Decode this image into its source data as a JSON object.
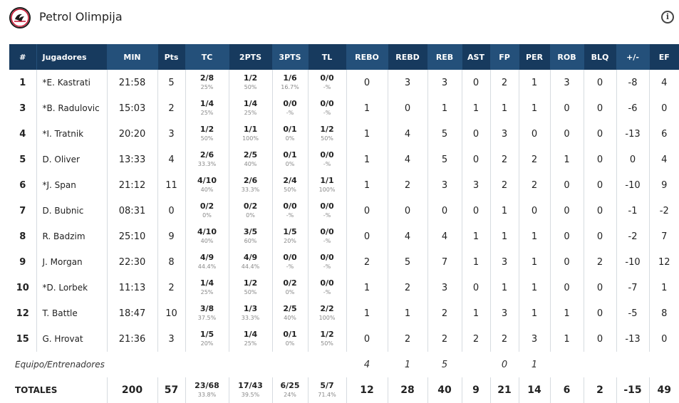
{
  "header": {
    "title": "Petrol Olimpija",
    "info_icon": "info-icon"
  },
  "columns": [
    "#",
    "Jugadores",
    "MIN",
    "Pts",
    "TC",
    "2PTS",
    "3PTS",
    "TL",
    "REBO",
    "REBD",
    "REB",
    "AST",
    "FP",
    "PER",
    "ROB",
    "BLQ",
    "+/-",
    "EF"
  ],
  "players": [
    {
      "num": "1",
      "name": "*E. Kastrati",
      "min": "21:58",
      "pts": "5",
      "tc": "2/8",
      "tc_pct": "25%",
      "p2": "1/2",
      "p2_pct": "50%",
      "p3": "1/6",
      "p3_pct": "16.7%",
      "tl": "0/0",
      "tl_pct": "-%",
      "rebo": "0",
      "rebd": "3",
      "reb": "3",
      "ast": "0",
      "fp": "2",
      "per": "1",
      "rob": "3",
      "blq": "0",
      "pm": "-8",
      "ef": "4"
    },
    {
      "num": "3",
      "name": "*B. Radulovic",
      "min": "15:03",
      "pts": "2",
      "tc": "1/4",
      "tc_pct": "25%",
      "p2": "1/4",
      "p2_pct": "25%",
      "p3": "0/0",
      "p3_pct": "-%",
      "tl": "0/0",
      "tl_pct": "-%",
      "rebo": "1",
      "rebd": "0",
      "reb": "1",
      "ast": "1",
      "fp": "1",
      "per": "1",
      "rob": "0",
      "blq": "0",
      "pm": "-6",
      "ef": "0"
    },
    {
      "num": "4",
      "name": "*I. Tratnik",
      "min": "20:20",
      "pts": "3",
      "tc": "1/2",
      "tc_pct": "50%",
      "p2": "1/1",
      "p2_pct": "100%",
      "p3": "0/1",
      "p3_pct": "0%",
      "tl": "1/2",
      "tl_pct": "50%",
      "rebo": "1",
      "rebd": "4",
      "reb": "5",
      "ast": "0",
      "fp": "3",
      "per": "0",
      "rob": "0",
      "blq": "0",
      "pm": "-13",
      "ef": "6"
    },
    {
      "num": "5",
      "name": "D. Oliver",
      "min": "13:33",
      "pts": "4",
      "tc": "2/6",
      "tc_pct": "33.3%",
      "p2": "2/5",
      "p2_pct": "40%",
      "p3": "0/1",
      "p3_pct": "0%",
      "tl": "0/0",
      "tl_pct": "-%",
      "rebo": "1",
      "rebd": "4",
      "reb": "5",
      "ast": "0",
      "fp": "2",
      "per": "2",
      "rob": "1",
      "blq": "0",
      "pm": "0",
      "ef": "4"
    },
    {
      "num": "6",
      "name": "*J. Span",
      "min": "21:12",
      "pts": "11",
      "tc": "4/10",
      "tc_pct": "40%",
      "p2": "2/6",
      "p2_pct": "33.3%",
      "p3": "2/4",
      "p3_pct": "50%",
      "tl": "1/1",
      "tl_pct": "100%",
      "rebo": "1",
      "rebd": "2",
      "reb": "3",
      "ast": "3",
      "fp": "2",
      "per": "2",
      "rob": "0",
      "blq": "0",
      "pm": "-10",
      "ef": "9"
    },
    {
      "num": "7",
      "name": "D. Bubnic",
      "min": "08:31",
      "pts": "0",
      "tc": "0/2",
      "tc_pct": "0%",
      "p2": "0/2",
      "p2_pct": "0%",
      "p3": "0/0",
      "p3_pct": "-%",
      "tl": "0/0",
      "tl_pct": "-%",
      "rebo": "0",
      "rebd": "0",
      "reb": "0",
      "ast": "0",
      "fp": "1",
      "per": "0",
      "rob": "0",
      "blq": "0",
      "pm": "-1",
      "ef": "-2"
    },
    {
      "num": "8",
      "name": "R. Badzim",
      "min": "25:10",
      "pts": "9",
      "tc": "4/10",
      "tc_pct": "40%",
      "p2": "3/5",
      "p2_pct": "60%",
      "p3": "1/5",
      "p3_pct": "20%",
      "tl": "0/0",
      "tl_pct": "-%",
      "rebo": "0",
      "rebd": "4",
      "reb": "4",
      "ast": "1",
      "fp": "1",
      "per": "1",
      "rob": "0",
      "blq": "0",
      "pm": "-2",
      "ef": "7"
    },
    {
      "num": "9",
      "name": "J. Morgan",
      "min": "22:30",
      "pts": "8",
      "tc": "4/9",
      "tc_pct": "44.4%",
      "p2": "4/9",
      "p2_pct": "44.4%",
      "p3": "0/0",
      "p3_pct": "-%",
      "tl": "0/0",
      "tl_pct": "-%",
      "rebo": "2",
      "rebd": "5",
      "reb": "7",
      "ast": "1",
      "fp": "3",
      "per": "1",
      "rob": "0",
      "blq": "2",
      "pm": "-10",
      "ef": "12"
    },
    {
      "num": "10",
      "name": "*D. Lorbek",
      "min": "11:13",
      "pts": "2",
      "tc": "1/4",
      "tc_pct": "25%",
      "p2": "1/2",
      "p2_pct": "50%",
      "p3": "0/2",
      "p3_pct": "0%",
      "tl": "0/0",
      "tl_pct": "-%",
      "rebo": "1",
      "rebd": "2",
      "reb": "3",
      "ast": "0",
      "fp": "1",
      "per": "1",
      "rob": "0",
      "blq": "0",
      "pm": "-7",
      "ef": "1"
    },
    {
      "num": "12",
      "name": "T. Battle",
      "min": "18:47",
      "pts": "10",
      "tc": "3/8",
      "tc_pct": "37.5%",
      "p2": "1/3",
      "p2_pct": "33.3%",
      "p3": "2/5",
      "p3_pct": "40%",
      "tl": "2/2",
      "tl_pct": "100%",
      "rebo": "1",
      "rebd": "1",
      "reb": "2",
      "ast": "1",
      "fp": "3",
      "per": "1",
      "rob": "1",
      "blq": "0",
      "pm": "-5",
      "ef": "8"
    },
    {
      "num": "15",
      "name": "G. Hrovat",
      "min": "21:36",
      "pts": "3",
      "tc": "1/5",
      "tc_pct": "20%",
      "p2": "1/4",
      "p2_pct": "25%",
      "p3": "0/1",
      "p3_pct": "0%",
      "tl": "1/2",
      "tl_pct": "50%",
      "rebo": "0",
      "rebd": "2",
      "reb": "2",
      "ast": "2",
      "fp": "2",
      "per": "3",
      "rob": "1",
      "blq": "0",
      "pm": "-13",
      "ef": "0"
    }
  ],
  "team_row": {
    "label": "Equipo/Entrenadores",
    "rebo": "4",
    "rebd": "1",
    "reb": "5",
    "ast": "",
    "fp": "0",
    "per": "1"
  },
  "totals": {
    "label": "TOTALES",
    "min": "200",
    "pts": "57",
    "tc": "23/68",
    "tc_pct": "33.8%",
    "p2": "17/43",
    "p2_pct": "39.5%",
    "p3": "6/25",
    "p3_pct": "24%",
    "tl": "5/7",
    "tl_pct": "71.4%",
    "rebo": "12",
    "rebd": "28",
    "reb": "40",
    "ast": "9",
    "fp": "21",
    "per": "14",
    "rob": "6",
    "blq": "2",
    "pm": "-15",
    "ef": "49"
  },
  "colors": {
    "header_dark": "#173a5e",
    "header_alt": "#24507a"
  }
}
